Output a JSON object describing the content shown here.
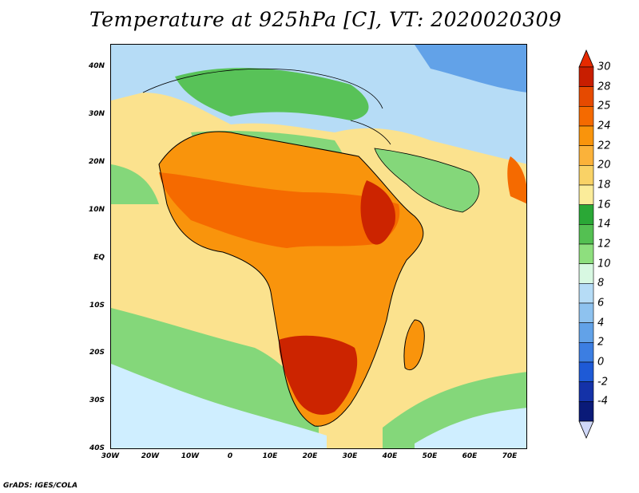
{
  "title": "Temperature at 925hPa [C], VT: 2020020309",
  "credit": "GrADS: IGES/COLA",
  "axes": {
    "lat_ticks": [
      "40N",
      "30N",
      "20N",
      "10N",
      "EQ",
      "10S",
      "20S",
      "30S",
      "40S"
    ],
    "lon_ticks": [
      "30W",
      "20W",
      "10W",
      "0",
      "10E",
      "20E",
      "30E",
      "40E",
      "50E",
      "60E",
      "70E"
    ]
  },
  "colorbar": {
    "labels": [
      "30",
      "28",
      "25",
      "24",
      "22",
      "20",
      "18",
      "16",
      "14",
      "12",
      "10",
      "8",
      "6",
      "4",
      "2",
      "0",
      "-2",
      "-4"
    ],
    "colors": [
      "#c81e00",
      "#e64a00",
      "#f56a00",
      "#f9940c",
      "#fbb23a",
      "#f9d266",
      "#fbec9a",
      "#2aa836",
      "#54c052",
      "#8edf7e",
      "#d8f8e2",
      "#b6dcf6",
      "#8ec2ef",
      "#62a2e8",
      "#3c7ee2",
      "#1e5ad6",
      "#1432a8",
      "#0a1a78"
    ],
    "top_color": "#e62a00",
    "bottom_color": "#d0d8f8"
  },
  "field_colors": {
    "ocean_warm": "#fbe28e",
    "ocean_cool": "#84d77a",
    "ocean_cold": "#cfeeff",
    "land_hot": "#f56a00",
    "land_very_hot": "#cc2400",
    "north_cool": "#b6dcf6",
    "north_cold": "#62a2e8",
    "mediterranean": "#58c258"
  }
}
